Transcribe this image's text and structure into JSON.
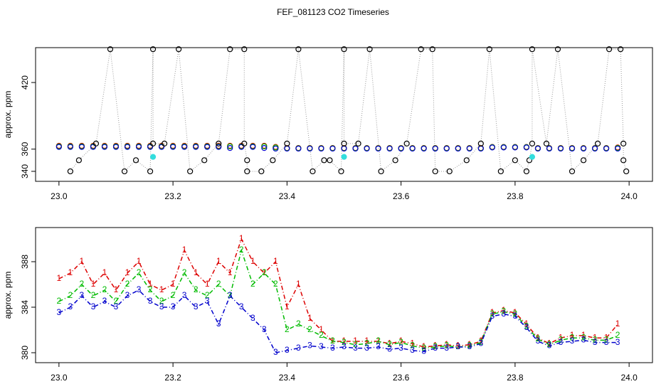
{
  "title": "FEF_081123  CO2 Timeseries",
  "chart_data": [
    {
      "type": "scatter",
      "ylabel": "approx. ppm",
      "xlim": [
        22.959,
        24.041
      ],
      "ylim": [
        331,
        451.4
      ],
      "xticks": [
        {
          "value": 23,
          "label": "23.0"
        },
        23.2,
        23.4,
        23.6,
        23.8,
        {
          "value": 24,
          "label": "24.0"
        }
      ],
      "yticks": [
        340,
        360,
        420
      ],
      "x": [
        23,
        23.02,
        23.04,
        23.06,
        23.08,
        23.1,
        23.12,
        23.14,
        23.16,
        23.18,
        23.2,
        23.22,
        23.24,
        23.26,
        23.28,
        23.3,
        23.32,
        23.34,
        23.36,
        23.38,
        23.4,
        23.42,
        23.44,
        23.46,
        23.48,
        23.5,
        23.52,
        23.54,
        23.56,
        23.58,
        23.6,
        23.62,
        23.64,
        23.66,
        23.68,
        23.7,
        23.72,
        23.74,
        23.76,
        23.78,
        23.8,
        23.82,
        23.84,
        23.86,
        23.88,
        23.9,
        23.92,
        23.94,
        23.96,
        23.98
      ],
      "series": [
        {
          "color": "#dd0000",
          "values": [
            363,
            363,
            363,
            363,
            363,
            363,
            363,
            363,
            363,
            363,
            363,
            363,
            363,
            363,
            363,
            363,
            363,
            363,
            363,
            362,
            361,
            361,
            361,
            361,
            361,
            361,
            361,
            361,
            361,
            361,
            361,
            361,
            361,
            361,
            361,
            361,
            361,
            361,
            362,
            362,
            362,
            362,
            361,
            361,
            361,
            361,
            361,
            361,
            361,
            361.5
          ]
        },
        {
          "color": "#00bb00",
          "values": [
            362.5,
            362.5,
            362.5,
            362.5,
            362.5,
            362.5,
            362.5,
            362.5,
            362.5,
            362.5,
            362.5,
            362.5,
            362.5,
            362.5,
            362.5,
            362.5,
            362.5,
            362.5,
            362.5,
            361.5,
            360.8,
            360.8,
            360.8,
            360.8,
            360.8,
            360.8,
            360.8,
            360.8,
            360.8,
            360.8,
            360.8,
            360.8,
            360.8,
            360.8,
            360.8,
            360.8,
            360.8,
            360.8,
            361.8,
            361.8,
            361.8,
            361.8,
            360.8,
            360.8,
            360.8,
            360.8,
            360.8,
            360.8,
            360.8,
            361
          ]
        },
        {
          "color": "#0000cc",
          "values": [
            362,
            362,
            362,
            362,
            362,
            362,
            362,
            362,
            362,
            362,
            362,
            362,
            362,
            362,
            362,
            361,
            362,
            362,
            361,
            360.5,
            360.5,
            360.5,
            360.5,
            360.5,
            360.5,
            360.5,
            360.5,
            360.5,
            360.5,
            360.5,
            360.5,
            360.5,
            360.5,
            360.5,
            360.5,
            360.5,
            360.5,
            360.5,
            361.5,
            361.5,
            361.5,
            361.5,
            360.5,
            360.5,
            360.5,
            360.5,
            360.5,
            360.5,
            360.5,
            360.5
          ]
        },
        {
          "color": "#000000",
          "connect": true,
          "x": [
            23.02,
            23.035,
            23.065,
            23.09,
            23.115,
            23.135,
            23.16,
            23.165,
            23.165,
            23.185,
            23.21,
            23.23,
            23.255,
            23.28,
            23.3,
            23.325,
            23.325,
            23.33,
            23.33,
            23.355,
            23.375,
            23.4,
            23.42,
            23.445,
            23.465,
            23.475,
            23.495,
            23.5,
            23.5,
            23.525,
            23.545,
            23.565,
            23.59,
            23.61,
            23.635,
            23.655,
            23.66,
            23.685,
            23.715,
            23.74,
            23.755,
            23.775,
            23.8,
            23.82,
            23.825,
            23.83,
            23.83,
            23.855,
            23.875,
            23.9,
            23.92,
            23.945,
            23.965,
            23.985,
            23.99,
            23.99,
            23.995
          ],
          "values": [
            340,
            350,
            365,
            450,
            340,
            350,
            340,
            450,
            365,
            365,
            450,
            340,
            350,
            365,
            450,
            450,
            365,
            350,
            340,
            340,
            350,
            365,
            450,
            340,
            350,
            350,
            340,
            450,
            365,
            365,
            450,
            340,
            350,
            365,
            450,
            450,
            340,
            340,
            350,
            365,
            450,
            340,
            350,
            340,
            350,
            365,
            450,
            365,
            450,
            340,
            350,
            365,
            450,
            450,
            365,
            350,
            340
          ]
        },
        {
          "color": "#33dddd",
          "filled": true,
          "x": [
            23.165,
            23.5,
            23.83
          ],
          "values": [
            353,
            353,
            353
          ]
        }
      ]
    },
    {
      "type": "line",
      "ylabel": "approx. ppm",
      "xlim": [
        22.959,
        24.041
      ],
      "ylim": [
        379.125,
        391
      ],
      "xticks": [
        {
          "value": 23,
          "label": "23.0"
        },
        23.2,
        23.4,
        23.6,
        23.8,
        {
          "value": 24,
          "label": "24.0"
        }
      ],
      "yticks": [
        380,
        384,
        388
      ],
      "x": [
        23,
        23.02,
        23.04,
        23.06,
        23.08,
        23.1,
        23.12,
        23.14,
        23.16,
        23.18,
        23.2,
        23.22,
        23.24,
        23.26,
        23.28,
        23.3,
        23.32,
        23.34,
        23.36,
        23.38,
        23.4,
        23.42,
        23.44,
        23.46,
        23.48,
        23.5,
        23.52,
        23.54,
        23.56,
        23.58,
        23.6,
        23.62,
        23.64,
        23.66,
        23.68,
        23.7,
        23.72,
        23.74,
        23.76,
        23.78,
        23.8,
        23.82,
        23.84,
        23.86,
        23.88,
        23.9,
        23.92,
        23.94,
        23.96,
        23.98
      ],
      "series": [
        {
          "name": "1",
          "color": "#dd0000",
          "values": [
            386.5,
            387,
            388,
            386,
            387,
            385.5,
            387,
            388,
            386,
            385.5,
            386,
            389,
            387,
            386,
            388,
            387,
            390,
            388,
            387,
            388,
            384,
            386,
            383,
            382,
            381,
            381,
            381,
            381,
            381,
            380.8,
            381,
            380.8,
            380.5,
            380.6,
            380.7,
            380.6,
            380.7,
            381,
            383.5,
            383.7,
            383.5,
            382.5,
            381.3,
            380.8,
            381.3,
            381.5,
            381.5,
            381.3,
            381.3,
            382.5
          ]
        },
        {
          "name": "2",
          "color": "#00bb00",
          "values": [
            384.5,
            385,
            386,
            385,
            385.5,
            384.5,
            386,
            387,
            385.5,
            384.5,
            385,
            387,
            385.5,
            385,
            386,
            385,
            389,
            386,
            387,
            386,
            382,
            382.5,
            382,
            381.5,
            381,
            380.9,
            380.7,
            380.8,
            381,
            380.7,
            380.9,
            380.6,
            380.4,
            380.5,
            380.6,
            380.5,
            380.6,
            380.9,
            383.4,
            383.6,
            383.4,
            382.3,
            381.2,
            380.7,
            381.1,
            381.3,
            381.3,
            381.1,
            381.1,
            381.5
          ]
        },
        {
          "name": "3",
          "color": "#0000cc",
          "values": [
            383.5,
            384,
            385,
            384,
            384.5,
            384,
            385,
            385.5,
            384.5,
            384,
            384,
            385,
            384,
            384.5,
            382.5,
            385,
            384,
            383,
            382,
            380,
            380.2,
            380.4,
            380.6,
            380.5,
            380.4,
            380.5,
            380.4,
            380.4,
            380.5,
            380.3,
            380.4,
            380.2,
            380.1,
            380.4,
            380.4,
            380.5,
            380.5,
            380.8,
            383.2,
            383.4,
            383.2,
            382.2,
            381,
            380.6,
            380.9,
            381,
            381.1,
            380.9,
            380.9,
            380.9
          ]
        }
      ]
    }
  ]
}
